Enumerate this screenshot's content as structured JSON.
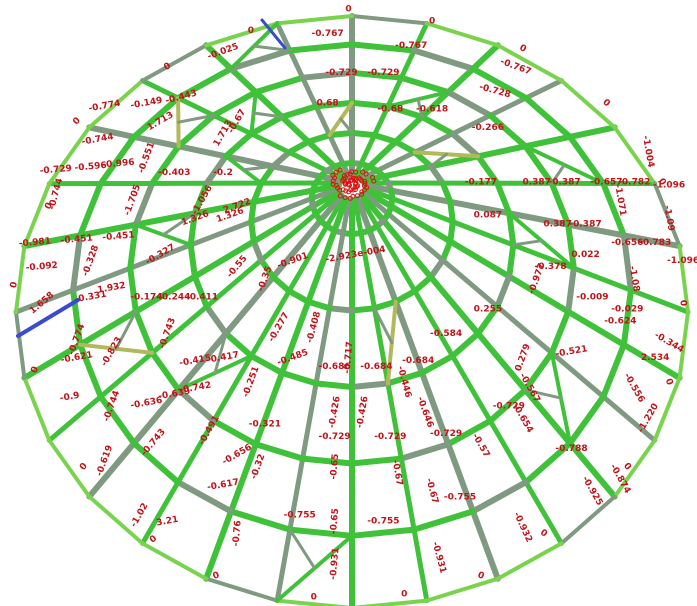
{
  "colors": {
    "background": "#ffffff",
    "member_green": "#3fc23a",
    "member_green_light": "#7ad34f",
    "member_olive": "#b3b85a",
    "member_gray": "#7f9a80",
    "member_blue": "#3b4bcf",
    "label_red": "#c0141a",
    "hub_red": "#e01010"
  },
  "icons": [
    "hub-node-cluster-icon"
  ],
  "labels": [
    {
      "text": "0",
      "u": 0.5,
      "v": 0.015,
      "rot": 0
    },
    {
      "text": "0",
      "u": 0.62,
      "v": 0.035,
      "rot": 0
    },
    {
      "text": "0",
      "u": 0.36,
      "v": 0.05,
      "rot": 0
    },
    {
      "text": "0",
      "u": 0.75,
      "v": 0.08,
      "rot": 30
    },
    {
      "text": "0",
      "u": 0.24,
      "v": 0.11,
      "rot": -30
    },
    {
      "text": "0",
      "u": 0.87,
      "v": 0.17,
      "rot": 40
    },
    {
      "text": "0",
      "u": 0.11,
      "v": 0.2,
      "rot": -45
    },
    {
      "text": "0",
      "u": 0.95,
      "v": 0.3,
      "rot": 60
    },
    {
      "text": "0",
      "u": 0.07,
      "v": 0.34,
      "rot": -60
    },
    {
      "text": "0",
      "u": 0.02,
      "v": 0.47,
      "rot": -80
    },
    {
      "text": "0",
      "u": 0.98,
      "v": 0.5,
      "rot": 85
    },
    {
      "text": "0",
      "u": 0.05,
      "v": 0.61,
      "rot": -70
    },
    {
      "text": "0",
      "u": 0.96,
      "v": 0.63,
      "rot": 70
    },
    {
      "text": "0",
      "u": 0.12,
      "v": 0.77,
      "rot": -50
    },
    {
      "text": "0",
      "u": 0.9,
      "v": 0.77,
      "rot": 50
    },
    {
      "text": "0",
      "u": 0.22,
      "v": 0.89,
      "rot": -35
    },
    {
      "text": "0",
      "u": 0.78,
      "v": 0.88,
      "rot": 35
    },
    {
      "text": "0",
      "u": 0.31,
      "v": 0.95,
      "rot": -20
    },
    {
      "text": "0",
      "u": 0.45,
      "v": 0.985,
      "rot": 0
    },
    {
      "text": "0",
      "u": 0.58,
      "v": 0.98,
      "rot": 0
    },
    {
      "text": "0",
      "u": 0.69,
      "v": 0.95,
      "rot": 20
    },
    {
      "text": "-0.767",
      "u": 0.47,
      "v": 0.055,
      "rot": 0
    },
    {
      "text": "-0.767",
      "u": 0.59,
      "v": 0.075,
      "rot": 0
    },
    {
      "text": "-0.767",
      "u": 0.74,
      "v": 0.11,
      "rot": 20
    },
    {
      "text": "-0.729",
      "u": 0.49,
      "v": 0.12,
      "rot": 0
    },
    {
      "text": "-0.729",
      "u": 0.55,
      "v": 0.12,
      "rot": 0
    },
    {
      "text": "-0.728",
      "u": 0.71,
      "v": 0.15,
      "rot": 15
    },
    {
      "text": "-0.729",
      "u": 0.08,
      "v": 0.28,
      "rot": -5
    },
    {
      "text": "-0.596",
      "u": 0.13,
      "v": 0.275,
      "rot": -5
    },
    {
      "text": "-0.996",
      "u": 0.17,
      "v": 0.27,
      "rot": -5
    },
    {
      "text": "-0.403",
      "u": 0.25,
      "v": 0.285,
      "rot": 0
    },
    {
      "text": "-0.2",
      "u": 0.32,
      "v": 0.285,
      "rot": 0
    },
    {
      "text": "-0.177",
      "u": 0.69,
      "v": 0.3,
      "rot": 0
    },
    {
      "text": "0.387",
      "u": 0.77,
      "v": 0.3,
      "rot": 0
    },
    {
      "text": "-0.387",
      "u": 0.81,
      "v": 0.3,
      "rot": 0
    },
    {
      "text": "-0.657",
      "u": 0.87,
      "v": 0.3,
      "rot": 0
    },
    {
      "text": "-0.782",
      "u": 0.91,
      "v": 0.3,
      "rot": 0
    },
    {
      "text": "-1.096",
      "u": 0.96,
      "v": 0.305,
      "rot": 0
    },
    {
      "text": "-0.774",
      "u": 0.15,
      "v": 0.175,
      "rot": -10
    },
    {
      "text": "-0.149",
      "u": 0.21,
      "v": 0.17,
      "rot": -10
    },
    {
      "text": "-0.443",
      "u": 0.26,
      "v": 0.16,
      "rot": -15
    },
    {
      "text": "-0.025",
      "u": 0.32,
      "v": 0.085,
      "rot": -20
    },
    {
      "text": "-0.744",
      "u": 0.14,
      "v": 0.23,
      "rot": -10
    },
    {
      "text": "1.713",
      "u": 0.23,
      "v": 0.2,
      "rot": -30
    },
    {
      "text": "1.713",
      "u": 0.32,
      "v": 0.22,
      "rot": -60
    },
    {
      "text": "-0.551",
      "u": 0.21,
      "v": 0.26,
      "rot": -70
    },
    {
      "text": "-0.67",
      "u": 0.34,
      "v": 0.2,
      "rot": -60
    },
    {
      "text": "0.68",
      "u": 0.47,
      "v": 0.17,
      "rot": 0
    },
    {
      "text": "-0.68",
      "u": 0.56,
      "v": 0.18,
      "rot": 0
    },
    {
      "text": "-0.618",
      "u": 0.62,
      "v": 0.18,
      "rot": 0
    },
    {
      "text": "-0.266",
      "u": 0.7,
      "v": 0.21,
      "rot": 0
    },
    {
      "text": "-0.744",
      "u": 0.08,
      "v": 0.32,
      "rot": -75
    },
    {
      "text": "-0.981",
      "u": 0.05,
      "v": 0.4,
      "rot": -5
    },
    {
      "text": "-0.451",
      "u": 0.11,
      "v": 0.395,
      "rot": -5
    },
    {
      "text": "-0.451",
      "u": 0.17,
      "v": 0.39,
      "rot": -5
    },
    {
      "text": "1.326",
      "u": 0.28,
      "v": 0.36,
      "rot": -20
    },
    {
      "text": "1.326",
      "u": 0.33,
      "v": 0.355,
      "rot": -20
    },
    {
      "text": "-1.705",
      "u": 0.19,
      "v": 0.33,
      "rot": -70
    },
    {
      "text": "2.722",
      "u": 0.34,
      "v": 0.34,
      "rot": -20
    },
    {
      "text": "-1.056",
      "u": 0.29,
      "v": 0.33,
      "rot": -60
    },
    {
      "text": "0.087",
      "u": 0.7,
      "v": 0.355,
      "rot": 0
    },
    {
      "text": "0.387",
      "u": 0.8,
      "v": 0.37,
      "rot": 0
    },
    {
      "text": "-0.387",
      "u": 0.84,
      "v": 0.37,
      "rot": 0
    },
    {
      "text": "-0.656",
      "u": 0.9,
      "v": 0.4,
      "rot": 0
    },
    {
      "text": "-0.783",
      "u": 0.94,
      "v": 0.4,
      "rot": 0
    },
    {
      "text": "-1.096",
      "u": 0.98,
      "v": 0.43,
      "rot": 0
    },
    {
      "text": "-1.071",
      "u": 0.89,
      "v": 0.33,
      "rot": 80
    },
    {
      "text": "-1.09",
      "u": 0.96,
      "v": 0.36,
      "rot": 80
    },
    {
      "text": "-1.004",
      "u": 0.93,
      "v": 0.25,
      "rot": 80
    },
    {
      "text": "-0.092",
      "u": 0.06,
      "v": 0.44,
      "rot": -5
    },
    {
      "text": "1.658",
      "u": 0.06,
      "v": 0.5,
      "rot": -40
    },
    {
      "text": "-0.331",
      "u": 0.13,
      "v": 0.49,
      "rot": -10
    },
    {
      "text": "1.932",
      "u": 0.16,
      "v": 0.475,
      "rot": -10
    },
    {
      "text": "-0.328",
      "u": 0.13,
      "v": 0.43,
      "rot": -70
    },
    {
      "text": "-0.327",
      "u": 0.23,
      "v": 0.42,
      "rot": -30
    },
    {
      "text": "-0.55",
      "u": 0.34,
      "v": 0.44,
      "rot": -50
    },
    {
      "text": "-0.35",
      "u": 0.38,
      "v": 0.46,
      "rot": -70
    },
    {
      "text": "-0.411",
      "u": 0.29,
      "v": 0.49,
      "rot": 0
    },
    {
      "text": "-0.244",
      "u": 0.25,
      "v": 0.49,
      "rot": 0
    },
    {
      "text": "-0.174",
      "u": 0.21,
      "v": 0.49,
      "rot": 0
    },
    {
      "text": "-0.901",
      "u": 0.42,
      "v": 0.43,
      "rot": -20
    },
    {
      "text": "-2.923e-004",
      "u": 0.51,
      "v": 0.42,
      "rot": -10
    },
    {
      "text": "-0.774",
      "u": 0.11,
      "v": 0.56,
      "rot": -70
    },
    {
      "text": "-0.621",
      "u": 0.11,
      "v": 0.59,
      "rot": -10
    },
    {
      "text": "-0.823",
      "u": 0.16,
      "v": 0.58,
      "rot": -60
    },
    {
      "text": "-0.743",
      "u": 0.24,
      "v": 0.55,
      "rot": -70
    },
    {
      "text": "-0.415",
      "u": 0.28,
      "v": 0.595,
      "rot": -10
    },
    {
      "text": "-0.417",
      "u": 0.32,
      "v": 0.59,
      "rot": -10
    },
    {
      "text": "-0.277",
      "u": 0.4,
      "v": 0.54,
      "rot": -60
    },
    {
      "text": "-0.408",
      "u": 0.45,
      "v": 0.54,
      "rot": -75
    },
    {
      "text": "-0.485",
      "u": 0.42,
      "v": 0.59,
      "rot": -20
    },
    {
      "text": "-0.686",
      "u": 0.48,
      "v": 0.605,
      "rot": 0
    },
    {
      "text": "-0.684",
      "u": 0.54,
      "v": 0.605,
      "rot": 0
    },
    {
      "text": "-0.684",
      "u": 0.6,
      "v": 0.595,
      "rot": 0
    },
    {
      "text": "-0.584",
      "u": 0.64,
      "v": 0.55,
      "rot": 0
    },
    {
      "text": "0.255",
      "u": 0.7,
      "v": 0.51,
      "rot": 0
    },
    {
      "text": "0.279",
      "u": 0.75,
      "v": 0.59,
      "rot": -70
    },
    {
      "text": "-0.521",
      "u": 0.82,
      "v": 0.58,
      "rot": -10
    },
    {
      "text": "-0.624",
      "u": 0.89,
      "v": 0.53,
      "rot": 0
    },
    {
      "text": "-0.009",
      "u": 0.85,
      "v": 0.49,
      "rot": 0
    },
    {
      "text": "-0.029",
      "u": 0.9,
      "v": 0.51,
      "rot": 0
    },
    {
      "text": "-0.378",
      "u": 0.79,
      "v": 0.44,
      "rot": 0
    },
    {
      "text": "0.022",
      "u": 0.84,
      "v": 0.42,
      "rot": 0
    },
    {
      "text": "-0.977",
      "u": 0.77,
      "v": 0.46,
      "rot": -70
    },
    {
      "text": "-1.08",
      "u": 0.91,
      "v": 0.46,
      "rot": 80
    },
    {
      "text": "-0.344",
      "u": 0.96,
      "v": 0.565,
      "rot": 30
    },
    {
      "text": "2.534",
      "u": 0.94,
      "v": 0.59,
      "rot": 0
    },
    {
      "text": "-0.556",
      "u": 0.91,
      "v": 0.64,
      "rot": 60
    },
    {
      "text": "-1.220",
      "u": 0.93,
      "v": 0.69,
      "rot": -60
    },
    {
      "text": "-0.9",
      "u": 0.1,
      "v": 0.655,
      "rot": -10
    },
    {
      "text": "-0.744",
      "u": 0.16,
      "v": 0.67,
      "rot": -70
    },
    {
      "text": "-0.636",
      "u": 0.21,
      "v": 0.665,
      "rot": -10
    },
    {
      "text": "-0.639",
      "u": 0.25,
      "v": 0.65,
      "rot": -10
    },
    {
      "text": "-0.742",
      "u": 0.28,
      "v": 0.64,
      "rot": -10
    },
    {
      "text": "-0.251",
      "u": 0.36,
      "v": 0.63,
      "rot": -70
    },
    {
      "text": "-0.321",
      "u": 0.38,
      "v": 0.7,
      "rot": 0
    },
    {
      "text": "-0.426",
      "u": 0.48,
      "v": 0.68,
      "rot": -80
    },
    {
      "text": "-0.426",
      "u": 0.52,
      "v": 0.68,
      "rot": -80
    },
    {
      "text": "-0.717",
      "u": 0.5,
      "v": 0.59,
      "rot": -85
    },
    {
      "text": "-0.729",
      "u": 0.48,
      "v": 0.72,
      "rot": 0
    },
    {
      "text": "-0.729",
      "u": 0.56,
      "v": 0.72,
      "rot": 0
    },
    {
      "text": "-0.729",
      "u": 0.64,
      "v": 0.715,
      "rot": 0
    },
    {
      "text": "-0.729",
      "u": 0.73,
      "v": 0.67,
      "rot": 0
    },
    {
      "text": "-0.446",
      "u": 0.58,
      "v": 0.63,
      "rot": 75
    },
    {
      "text": "-0.646",
      "u": 0.61,
      "v": 0.68,
      "rot": 70
    },
    {
      "text": "-0.57",
      "u": 0.69,
      "v": 0.735,
      "rot": 60
    },
    {
      "text": "-0.654",
      "u": 0.75,
      "v": 0.69,
      "rot": 60
    },
    {
      "text": "-0.567",
      "u": 0.76,
      "v": 0.64,
      "rot": 60
    },
    {
      "text": "-0.788",
      "u": 0.82,
      "v": 0.74,
      "rot": 0
    },
    {
      "text": "-0.874",
      "u": 0.89,
      "v": 0.79,
      "rot": 60
    },
    {
      "text": "-0.619",
      "u": 0.15,
      "v": 0.76,
      "rot": -70
    },
    {
      "text": "-0.743",
      "u": 0.22,
      "v": 0.73,
      "rot": -50
    },
    {
      "text": "-0.491",
      "u": 0.3,
      "v": 0.71,
      "rot": -60
    },
    {
      "text": "-0.656",
      "u": 0.34,
      "v": 0.75,
      "rot": -30
    },
    {
      "text": "-0.617",
      "u": 0.32,
      "v": 0.8,
      "rot": -10
    },
    {
      "text": "-0.32",
      "u": 0.37,
      "v": 0.77,
      "rot": -70
    },
    {
      "text": "3.21",
      "u": 0.24,
      "v": 0.86,
      "rot": -10
    },
    {
      "text": "-1.02",
      "u": 0.2,
      "v": 0.85,
      "rot": -60
    },
    {
      "text": "-0.76",
      "u": 0.34,
      "v": 0.88,
      "rot": -85
    },
    {
      "text": "-0.65",
      "u": 0.48,
      "v": 0.77,
      "rot": -85
    },
    {
      "text": "-0.65",
      "u": 0.48,
      "v": 0.86,
      "rot": -85
    },
    {
      "text": "-0.755",
      "u": 0.43,
      "v": 0.85,
      "rot": 0
    },
    {
      "text": "-0.755",
      "u": 0.55,
      "v": 0.86,
      "rot": 0
    },
    {
      "text": "-0.755",
      "u": 0.66,
      "v": 0.82,
      "rot": 0
    },
    {
      "text": "-0.67",
      "u": 0.57,
      "v": 0.78,
      "rot": 80
    },
    {
      "text": "-0.67",
      "u": 0.62,
      "v": 0.81,
      "rot": 75
    },
    {
      "text": "-0.931",
      "u": 0.48,
      "v": 0.93,
      "rot": -85
    },
    {
      "text": "-0.931",
      "u": 0.63,
      "v": 0.92,
      "rot": 75
    },
    {
      "text": "-0.932",
      "u": 0.75,
      "v": 0.87,
      "rot": 65
    },
    {
      "text": "-0.925",
      "u": 0.85,
      "v": 0.81,
      "rot": 60
    }
  ]
}
